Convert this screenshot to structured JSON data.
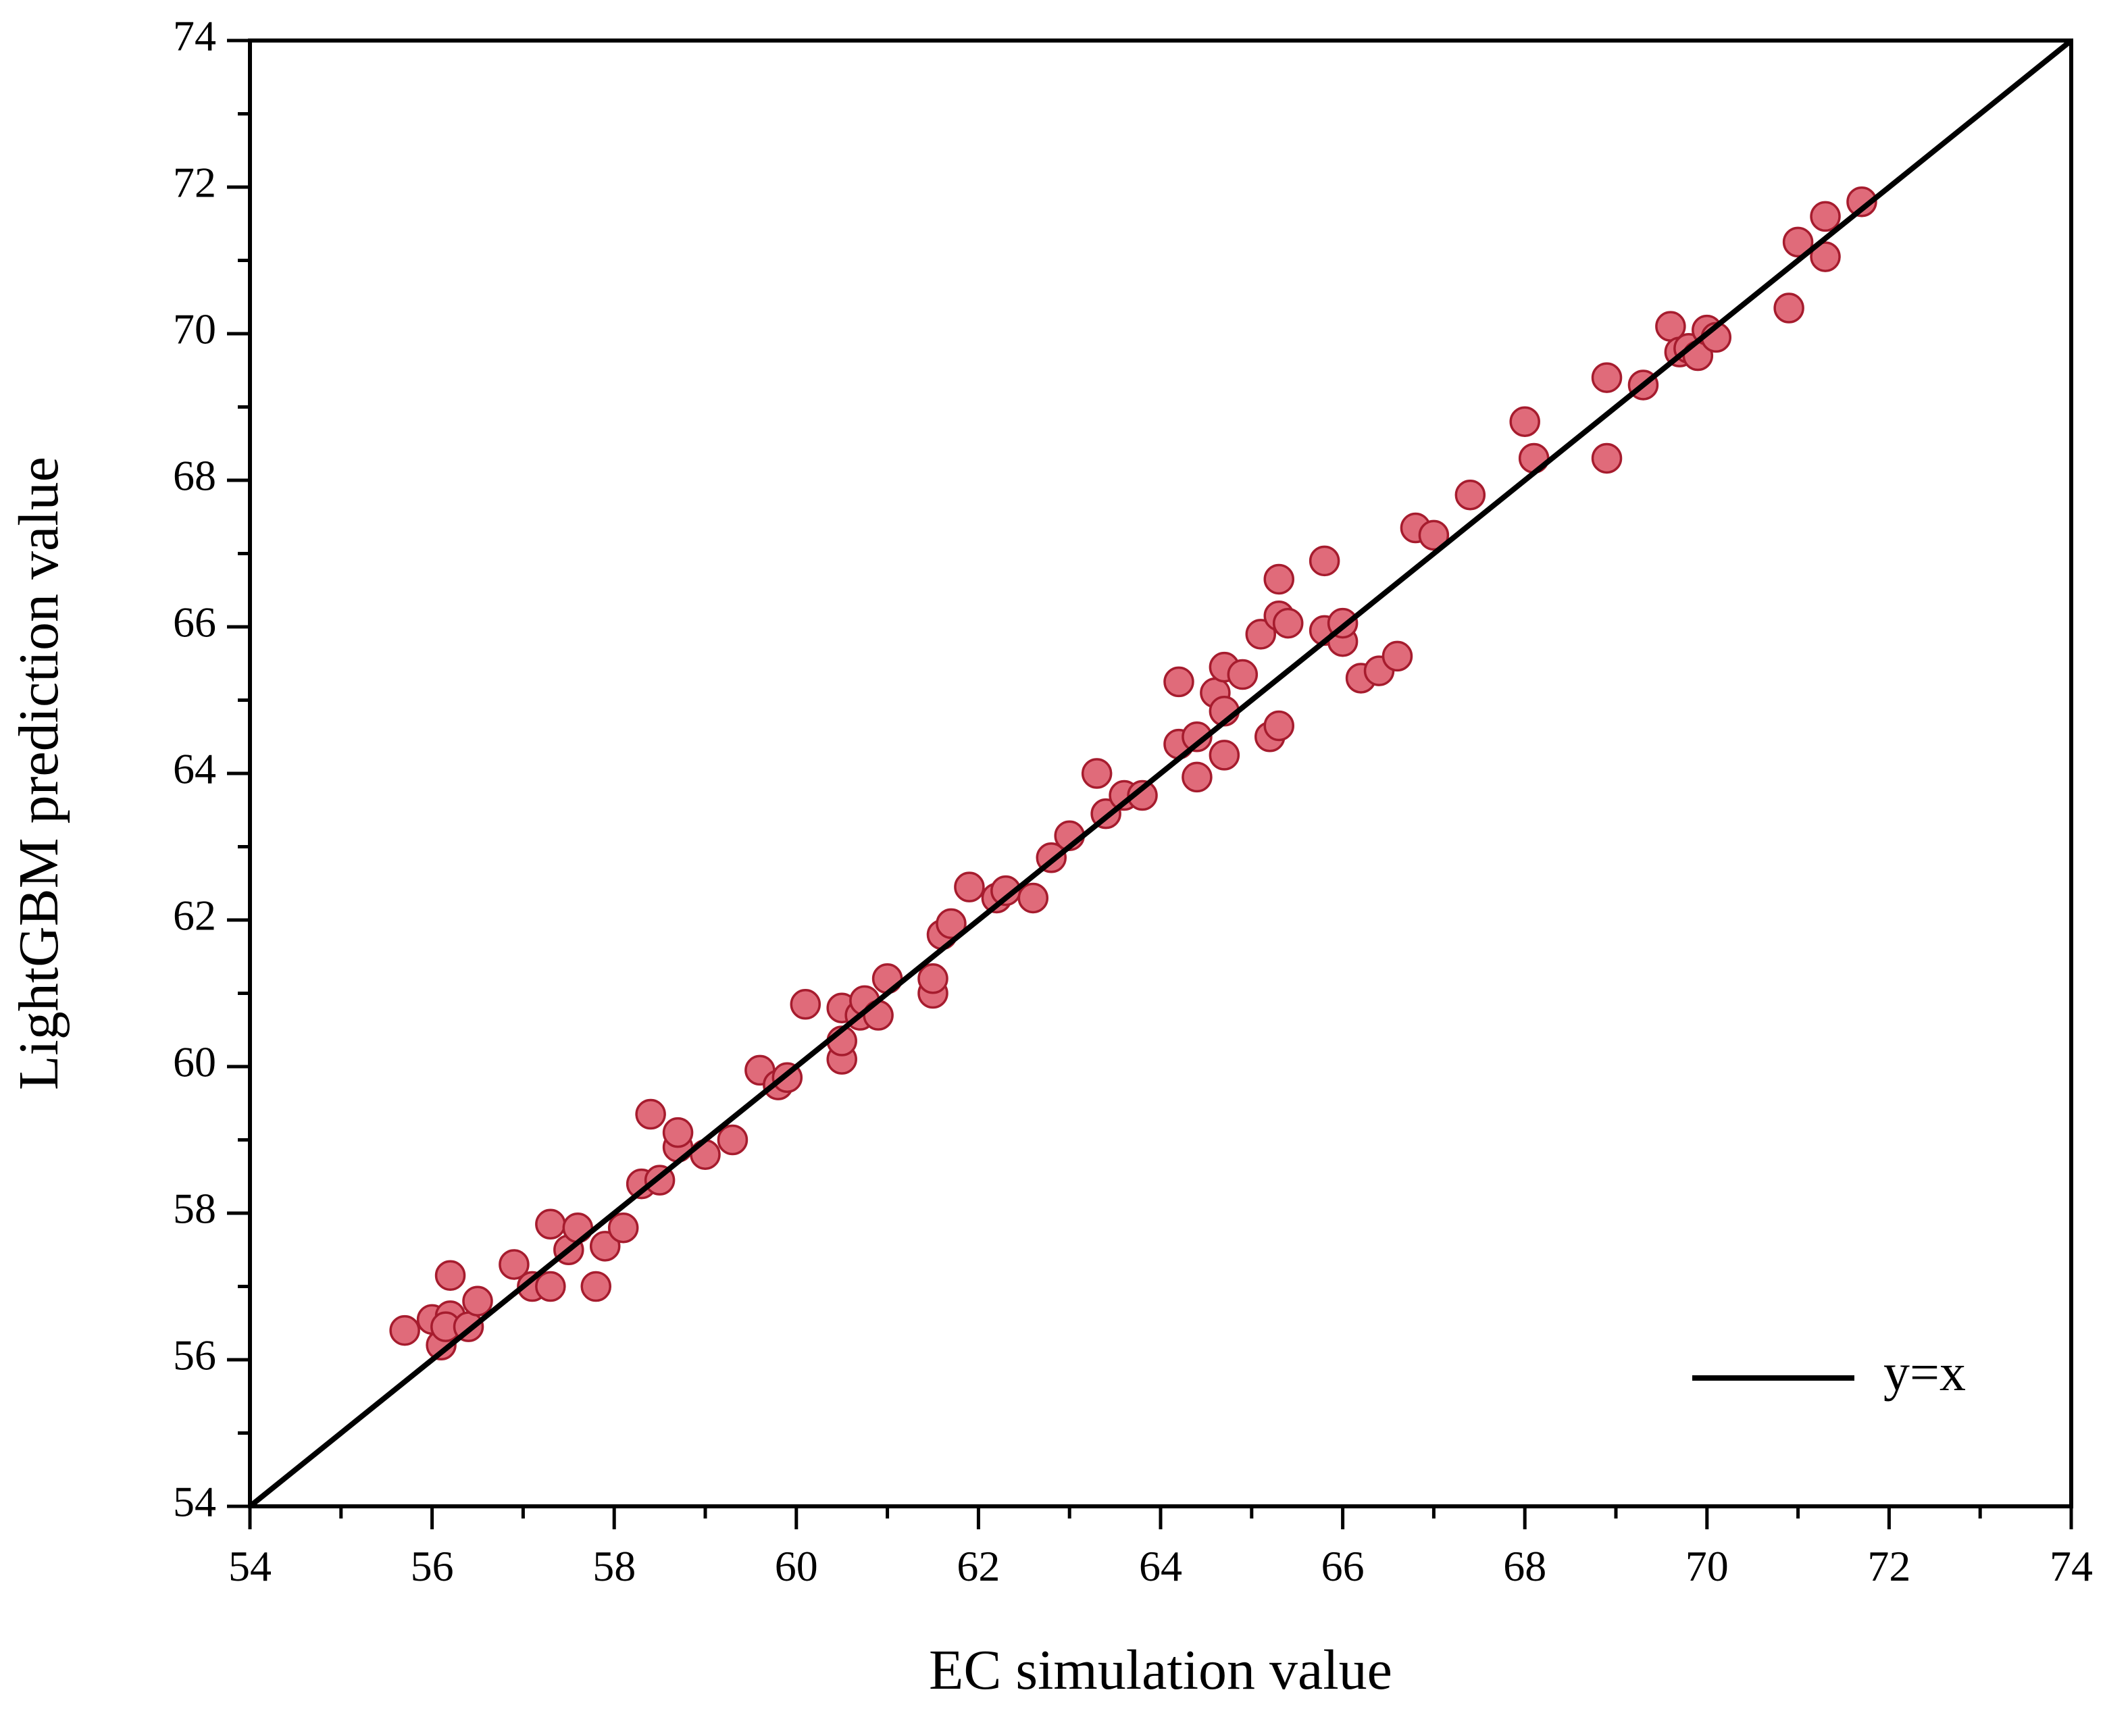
{
  "chart_data": {
    "type": "scatter",
    "title": "",
    "xlabel": "EC simulation value",
    "ylabel": "LightGBM prediction value",
    "xlim": [
      54,
      74
    ],
    "ylim": [
      54,
      74
    ],
    "xticks": [
      54,
      56,
      58,
      60,
      62,
      64,
      66,
      68,
      70,
      72,
      74
    ],
    "yticks": [
      54,
      56,
      58,
      60,
      62,
      64,
      66,
      68,
      70,
      72,
      74
    ],
    "grid": false,
    "legend": {
      "position": "bottom-right",
      "entries": [
        "y=x"
      ]
    },
    "reference_line": {
      "name": "y=x",
      "from": [
        54,
        54
      ],
      "to": [
        74,
        74
      ],
      "color": "#000000"
    },
    "marker": {
      "fill": "#e06b7a",
      "edge": "#a61c2e"
    },
    "series": [
      {
        "name": "predictions",
        "points": [
          [
            55.7,
            56.4
          ],
          [
            56.0,
            56.55
          ],
          [
            56.1,
            56.2
          ],
          [
            56.2,
            56.6
          ],
          [
            56.2,
            57.15
          ],
          [
            56.15,
            56.45
          ],
          [
            56.4,
            56.45
          ],
          [
            56.5,
            56.8
          ],
          [
            56.9,
            57.3
          ],
          [
            57.1,
            57.0
          ],
          [
            57.3,
            57.0
          ],
          [
            57.3,
            57.85
          ],
          [
            57.5,
            57.5
          ],
          [
            57.6,
            57.8
          ],
          [
            57.8,
            57.0
          ],
          [
            57.9,
            57.55
          ],
          [
            58.1,
            57.8
          ],
          [
            58.3,
            58.4
          ],
          [
            58.4,
            59.35
          ],
          [
            58.5,
            58.45
          ],
          [
            58.7,
            58.9
          ],
          [
            58.7,
            59.1
          ],
          [
            59.0,
            58.8
          ],
          [
            59.3,
            59.0
          ],
          [
            59.6,
            59.95
          ],
          [
            59.8,
            59.75
          ],
          [
            59.9,
            59.85
          ],
          [
            60.1,
            60.85
          ],
          [
            60.5,
            60.1
          ],
          [
            60.5,
            60.35
          ],
          [
            60.5,
            60.8
          ],
          [
            60.7,
            60.7
          ],
          [
            60.75,
            60.9
          ],
          [
            60.9,
            60.7
          ],
          [
            61.0,
            61.2
          ],
          [
            61.5,
            61.0
          ],
          [
            61.5,
            61.2
          ],
          [
            61.6,
            61.8
          ],
          [
            61.7,
            61.95
          ],
          [
            61.9,
            62.45
          ],
          [
            62.2,
            62.3
          ],
          [
            62.3,
            62.4
          ],
          [
            62.6,
            62.3
          ],
          [
            62.8,
            62.85
          ],
          [
            63.0,
            63.15
          ],
          [
            63.3,
            64.0
          ],
          [
            63.4,
            63.45
          ],
          [
            63.6,
            63.7
          ],
          [
            63.8,
            63.7
          ],
          [
            64.2,
            64.4
          ],
          [
            64.2,
            65.25
          ],
          [
            64.4,
            64.5
          ],
          [
            64.4,
            63.95
          ],
          [
            64.6,
            65.1
          ],
          [
            64.7,
            64.25
          ],
          [
            64.7,
            64.85
          ],
          [
            64.7,
            65.45
          ],
          [
            64.9,
            65.35
          ],
          [
            65.1,
            65.9
          ],
          [
            65.2,
            64.5
          ],
          [
            65.3,
            64.65
          ],
          [
            65.3,
            66.15
          ],
          [
            65.3,
            66.65
          ],
          [
            65.4,
            66.05
          ],
          [
            65.8,
            65.95
          ],
          [
            65.8,
            66.9
          ],
          [
            66.0,
            65.8
          ],
          [
            66.0,
            66.05
          ],
          [
            66.2,
            65.3
          ],
          [
            66.4,
            65.4
          ],
          [
            66.6,
            65.6
          ],
          [
            66.8,
            67.35
          ],
          [
            67.0,
            67.25
          ],
          [
            67.4,
            67.8
          ],
          [
            68.0,
            68.8
          ],
          [
            68.1,
            68.3
          ],
          [
            68.9,
            69.4
          ],
          [
            68.9,
            68.3
          ],
          [
            69.3,
            69.3
          ],
          [
            69.6,
            70.1
          ],
          [
            69.7,
            69.75
          ],
          [
            69.8,
            69.8
          ],
          [
            69.9,
            69.7
          ],
          [
            70.0,
            70.05
          ],
          [
            70.1,
            69.95
          ],
          [
            70.9,
            70.35
          ],
          [
            71.0,
            71.25
          ],
          [
            71.3,
            71.05
          ],
          [
            71.3,
            71.6
          ],
          [
            71.7,
            71.8
          ]
        ]
      }
    ]
  }
}
